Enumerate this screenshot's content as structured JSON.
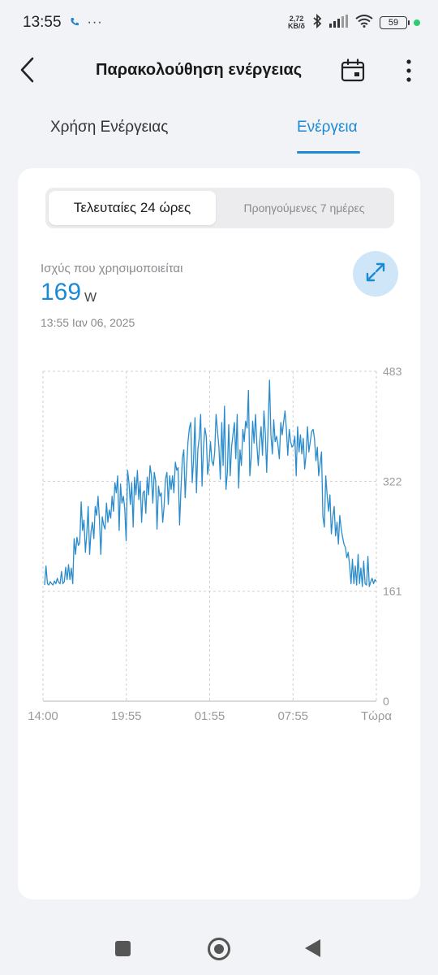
{
  "status_bar": {
    "time": "13:55",
    "call_icon": "phone-icon",
    "more_dots": "···",
    "net_speed_value": "2,72",
    "net_speed_unit": "KB/δ",
    "battery": "59"
  },
  "header": {
    "title": "Παρακολούθηση ενέργειας",
    "back_icon": "back-arrow-icon",
    "calendar_icon": "calendar-icon",
    "more_icon": "more-vertical-icon"
  },
  "tabs": [
    {
      "label": "Χρήση Ενέργειας",
      "active": false
    },
    {
      "label": "Ενέργεια",
      "active": true
    }
  ],
  "range_selector": {
    "options": [
      "Τελευταίες 24 ώρες",
      "Προηγούμενες 7 ημέρες"
    ],
    "selected": "Τελευταίες 24 ώρες"
  },
  "power": {
    "label": "Ισχύς που χρησιμοποιείται",
    "value": "169",
    "unit": "W",
    "timestamp": "13:55  Ιαν 06, 2025",
    "expand_icon": "expand-icon"
  },
  "colors": {
    "accent": "#1c8ad3",
    "line": "#2a8ccc",
    "background": "#f2f3f7",
    "card": "#ffffff"
  },
  "chart_data": {
    "type": "line",
    "x_ticks": [
      "14:00",
      "19:55",
      "01:55",
      "07:55",
      "Τώρα"
    ],
    "y_ticks": [
      0,
      161,
      322,
      483
    ],
    "ylim": [
      0,
      483
    ],
    "grid": true,
    "series": [
      {
        "values": [
          170,
          198,
          172,
          170,
          175,
          172,
          170,
          176,
          172,
          180,
          174,
          172,
          190,
          172,
          175,
          196,
          178,
          200,
          178,
          195,
          172,
          238,
          215,
          240,
          228,
          232,
          292,
          250,
          265,
          218,
          245,
          285,
          215,
          248,
          262,
          238,
          285,
          272,
          300,
          265,
          215,
          270,
          258,
          252,
          290,
          262,
          280,
          268,
          300,
          278,
          320,
          305,
          330,
          250,
          318,
          290,
          300,
          282,
          235,
          338,
          320,
          288,
          320,
          255,
          328,
          302,
          338,
          295,
          322,
          262,
          305,
          308,
          275,
          328,
          302,
          345,
          330,
          290,
          335,
          322,
          252,
          315,
          300,
          305,
          262,
          285,
          325,
          335,
          288,
          330,
          310,
          330,
          305,
          350,
          338,
          342,
          258,
          310,
          355,
          368,
          298,
          340,
          380,
          400,
          408,
          320,
          355,
          415,
          305,
          368,
          385,
          420,
          315,
          370,
          400,
          388,
          332,
          350,
          380,
          352,
          345,
          365,
          420,
          395,
          372,
          325,
          408,
          345,
          432,
          310,
          335,
          405,
          330,
          372,
          390,
          408,
          355,
          420,
          312,
          368,
          345,
          398,
          380,
          410,
          400,
          455,
          330,
          358,
          410,
          378,
          420,
          375,
          345,
          380,
          402,
          360,
          425,
          392,
          335,
          405,
          470,
          390,
          362,
          412,
          380,
          388,
          375,
          355,
          408,
          390,
          408,
          425,
          398,
          360,
          398,
          380,
          372,
          375,
          388,
          330,
          402,
          365,
          390,
          362,
          385,
          340,
          360,
          402,
          365,
          380,
          395,
          398,
          385,
          352,
          372,
          330,
          348,
          365,
          270,
          255,
          330,
          302,
          278,
          302,
          245,
          270,
          285,
          242,
          262,
          230,
          272,
          252,
          240,
          230,
          225,
          210,
          218,
          198,
          172,
          208,
          172,
          198,
          170,
          215,
          172,
          195,
          168,
          205,
          172,
          170,
          212,
          168,
          175,
          180,
          172,
          178,
          175
        ],
        "color": "#2a8ccc"
      }
    ]
  }
}
